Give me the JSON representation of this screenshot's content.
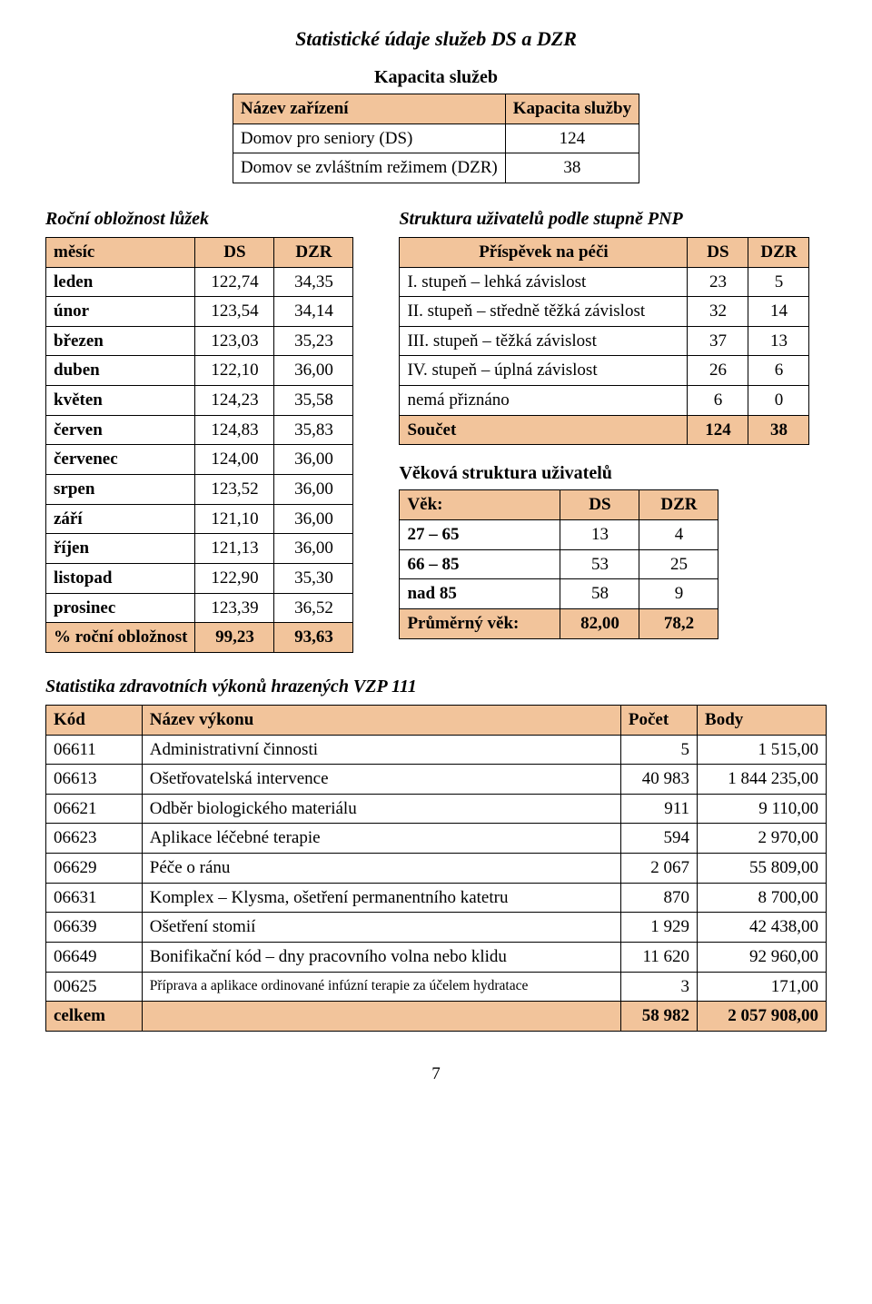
{
  "title": "Statistické údaje služeb DS a DZR",
  "capacity": {
    "heading": "Kapacita služeb",
    "cols": [
      "Název zařízení",
      "Kapacita služby"
    ],
    "rows": [
      {
        "name": "Domov pro seniory (DS)",
        "val": "124"
      },
      {
        "name": "Domov se zvláštním režimem (DZR)",
        "val": "38"
      }
    ]
  },
  "monthly": {
    "heading": "Roční obložnost lůžek",
    "col_month": "měsíc",
    "col_ds": "DS",
    "col_dzr": "DZR",
    "rows": [
      {
        "m": "leden",
        "ds": "122,74",
        "dzr": "34,35"
      },
      {
        "m": "únor",
        "ds": "123,54",
        "dzr": "34,14"
      },
      {
        "m": "březen",
        "ds": "123,03",
        "dzr": "35,23"
      },
      {
        "m": "duben",
        "ds": "122,10",
        "dzr": "36,00"
      },
      {
        "m": "květen",
        "ds": "124,23",
        "dzr": "35,58"
      },
      {
        "m": "červen",
        "ds": "124,83",
        "dzr": "35,83"
      },
      {
        "m": "červenec",
        "ds": "124,00",
        "dzr": "36,00"
      },
      {
        "m": "srpen",
        "ds": "123,52",
        "dzr": "36,00"
      },
      {
        "m": "září",
        "ds": "121,10",
        "dzr": "36,00"
      },
      {
        "m": "říjen",
        "ds": "121,13",
        "dzr": "36,00"
      },
      {
        "m": "listopad",
        "ds": "122,90",
        "dzr": "35,30"
      },
      {
        "m": "prosinec",
        "ds": "123,39",
        "dzr": "36,52"
      }
    ],
    "total_label": "% roční obložnost",
    "total_ds": "99,23",
    "total_dzr": "93,63"
  },
  "pnp": {
    "heading": "Struktura uživatelů podle stupně PNP",
    "col_label": "Příspěvek na péči",
    "col_ds": "DS",
    "col_dzr": "DZR",
    "rows": [
      {
        "label": "I. stupeň – lehká závislost",
        "ds": "23",
        "dzr": "5"
      },
      {
        "label": "II. stupeň – středně těžká závislost",
        "ds": "32",
        "dzr": "14"
      },
      {
        "label": "III. stupeň – těžká závislost",
        "ds": "37",
        "dzr": "13"
      },
      {
        "label": "IV. stupeň – úplná závislost",
        "ds": "26",
        "dzr": "6"
      },
      {
        "label": "nemá přiznáno",
        "ds": "6",
        "dzr": "0"
      }
    ],
    "sum_label": "Součet",
    "sum_ds": "124",
    "sum_dzr": "38"
  },
  "age": {
    "heading": "Věková struktura uživatelů",
    "col_age": "Věk:",
    "col_ds": "DS",
    "col_dzr": "DZR",
    "rows": [
      {
        "range": "27 – 65",
        "ds": "13",
        "dzr": "4"
      },
      {
        "range": "66 – 85",
        "ds": "53",
        "dzr": "25"
      },
      {
        "range": "nad 85",
        "ds": "58",
        "dzr": "9"
      }
    ],
    "avg_label": "Průměrný věk:",
    "avg_ds": "82,00",
    "avg_dzr": "78,2"
  },
  "vzp": {
    "heading": "Statistika zdravotních výkonů hrazených VZP 111",
    "cols": [
      "Kód",
      "Název výkonu",
      "Počet",
      "Body"
    ],
    "rows": [
      {
        "code": "06611",
        "name": "Administrativní činnosti",
        "count": "5",
        "points": "1 515,00"
      },
      {
        "code": "06613",
        "name": "Ošetřovatelská intervence",
        "count": "40 983",
        "points": "1 844 235,00"
      },
      {
        "code": "06621",
        "name": "Odběr biologického materiálu",
        "count": "911",
        "points": "9 110,00"
      },
      {
        "code": "06623",
        "name": "Aplikace léčebné terapie",
        "count": "594",
        "points": "2 970,00"
      },
      {
        "code": "06629",
        "name": "Péče o ránu",
        "count": "2 067",
        "points": "55 809,00"
      },
      {
        "code": "06631",
        "name": "Komplex – Klysma, ošetření permanentního katetru",
        "count": "870",
        "points": "8 700,00"
      },
      {
        "code": "06639",
        "name": "Ošetření stomií",
        "count": "1 929",
        "points": "42 438,00"
      },
      {
        "code": "06649",
        "name": "Bonifikační kód – dny pracovního volna nebo klidu",
        "count": "11 620",
        "points": "92 960,00"
      },
      {
        "code": "00625",
        "name": "Příprava a aplikace ordinované infúzní terapie za účelem hydratace",
        "count": "3",
        "points": "171,00",
        "small": true
      }
    ],
    "total_label": "celkem",
    "total_count": "58 982",
    "total_points": "2 057 908,00"
  },
  "page_number": "7"
}
